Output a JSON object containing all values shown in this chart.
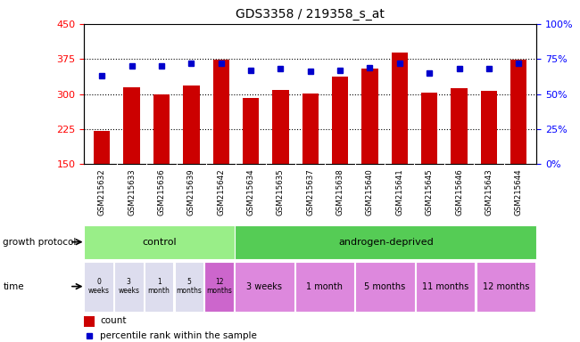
{
  "title": "GDS3358 / 219358_s_at",
  "samples": [
    "GSM215632",
    "GSM215633",
    "GSM215636",
    "GSM215639",
    "GSM215642",
    "GSM215634",
    "GSM215635",
    "GSM215637",
    "GSM215638",
    "GSM215640",
    "GSM215641",
    "GSM215645",
    "GSM215646",
    "GSM215643",
    "GSM215644"
  ],
  "counts": [
    221,
    315,
    300,
    318,
    374,
    292,
    308,
    302,
    338,
    355,
    388,
    303,
    313,
    307,
    374
  ],
  "percentiles": [
    63,
    70,
    70,
    72,
    72,
    67,
    68,
    66,
    67,
    69,
    72,
    65,
    68,
    68,
    72
  ],
  "ylim_left": [
    150,
    450
  ],
  "ylim_right": [
    0,
    100
  ],
  "yticks_left": [
    150,
    225,
    300,
    375,
    450
  ],
  "yticks_right": [
    0,
    25,
    50,
    75,
    100
  ],
  "bar_color": "#cc0000",
  "dot_color": "#0000cc",
  "bg_color": "#ffffff",
  "growth_protocol_label": "growth protocol",
  "time_label": "time",
  "control_label": "control",
  "androgen_label": "androgen-deprived",
  "control_color": "#99ee88",
  "androgen_color": "#55cc55",
  "time_control_colors": [
    "#ddddee",
    "#ddddee",
    "#ddddee",
    "#ddddee",
    "#cc66cc"
  ],
  "time_androgen_colors": [
    "#dd88dd",
    "#dd88dd",
    "#dd88dd",
    "#dd88dd",
    "#dd88dd"
  ],
  "time_control_labels": [
    "0\nweeks",
    "3\nweeks",
    "1\nmonth",
    "5\nmonths",
    "12\nmonths"
  ],
  "time_androgen_labels": [
    "3 weeks",
    "1 month",
    "5 months",
    "11 months",
    "12 months"
  ],
  "and_group_sizes": [
    2,
    2,
    2,
    2,
    2
  ],
  "n_control": 5,
  "n_androgen": 10,
  "legend_count_label": "count",
  "legend_pct_label": "percentile rank within the sample",
  "title_fontsize": 10,
  "tick_fontsize": 8,
  "label_fontsize": 8
}
